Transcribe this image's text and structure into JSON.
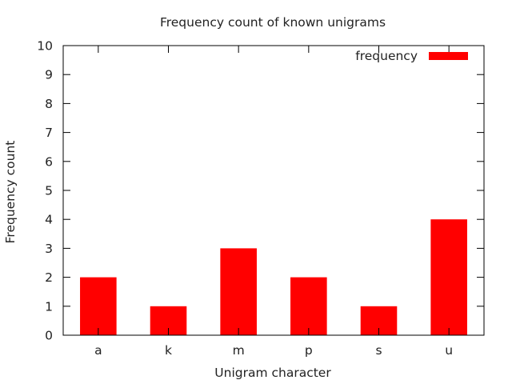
{
  "chart_data": {
    "type": "bar",
    "title": "Frequency count of known unigrams",
    "xlabel": "Unigram character",
    "ylabel": "Frequency count",
    "categories": [
      "a",
      "k",
      "m",
      "p",
      "s",
      "u"
    ],
    "series": [
      {
        "name": "frequency",
        "values": [
          2,
          1,
          3,
          2,
          1,
          4
        ]
      }
    ],
    "ylim": [
      0,
      10
    ],
    "yticks": [
      0,
      1,
      2,
      3,
      4,
      5,
      6,
      7,
      8,
      9,
      10
    ],
    "grid": false,
    "legend": "top-right",
    "bar_color": "#ff0000"
  }
}
